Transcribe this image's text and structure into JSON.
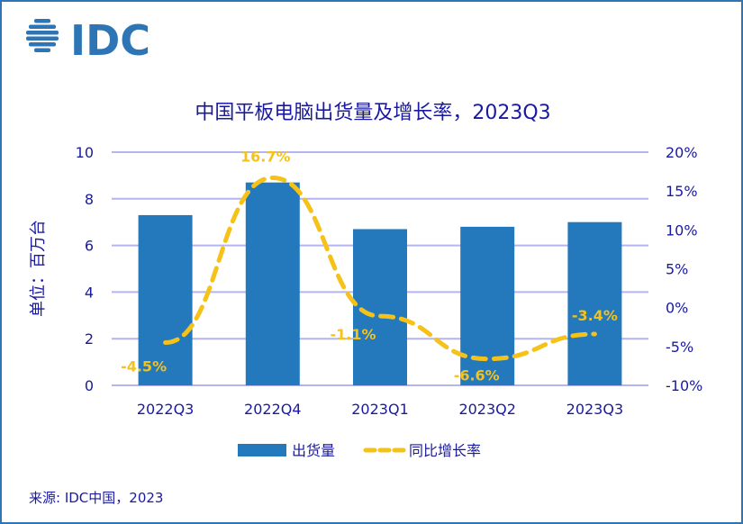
{
  "logo": "IDC",
  "source": "来源: IDC中国，2023",
  "colors": {
    "bar": "#2479bd",
    "line": "#f5c21a",
    "grid": "#b4b4f0",
    "text": "#1a1aa0",
    "border": "#2e75b6"
  },
  "chart_data": {
    "type": "bar+line",
    "title": "中国平板电脑出货量及增长率，2023Q3",
    "ylabel": "单位：百万台",
    "categories": [
      "2022Q3",
      "2022Q4",
      "2023Q1",
      "2023Q2",
      "2023Q3"
    ],
    "series": [
      {
        "name": "出货量",
        "type": "bar",
        "axis": "left",
        "values": [
          7.3,
          8.7,
          6.7,
          6.8,
          7.0
        ]
      },
      {
        "name": "同比增长率",
        "type": "line",
        "style": "dashed",
        "axis": "right",
        "values": [
          -4.5,
          16.7,
          -1.1,
          -6.6,
          -3.4
        ],
        "labels": [
          "-4.5%",
          "16.7%",
          "-1.1%",
          "-6.6%",
          "-3.4%"
        ]
      }
    ],
    "ylim_left": [
      0,
      10
    ],
    "yticks_left": [
      "0",
      "2",
      "4",
      "6",
      "8",
      "10"
    ],
    "ylim_right": [
      -10,
      20
    ],
    "yticks_right": [
      "-10%",
      "-5%",
      "0%",
      "5%",
      "10%",
      "15%",
      "20%"
    ],
    "grid": true,
    "legend": "bottom"
  }
}
